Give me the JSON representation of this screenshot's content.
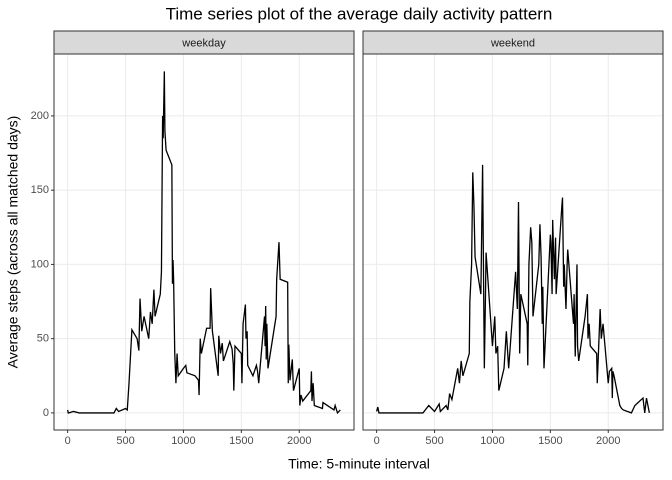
{
  "chart_data": {
    "type": "line",
    "title": "Time series plot of the average daily activity pattern",
    "xlabel": "Time: 5-minute interval",
    "ylabel": "Average steps (across all matched days)",
    "xlim": [
      -117.75,
      2472.75
    ],
    "xticks": [
      0,
      500,
      1000,
      1500,
      2000
    ],
    "ylim": [
      -11.5,
      241.7
    ],
    "yticks": [
      0,
      50,
      100,
      150,
      200
    ],
    "grid": true,
    "facet": true,
    "series": [
      {
        "name": "weekday",
        "color": "#000000",
        "x": [
          0,
          5,
          10,
          50,
          100,
          200,
          300,
          400,
          420,
          440,
          500,
          515,
          530,
          555,
          600,
          615,
          625,
          640,
          660,
          700,
          715,
          730,
          745,
          755,
          800,
          810,
          820,
          825,
          835,
          840,
          850,
          900,
          905,
          910,
          915,
          925,
          935,
          945,
          955,
          1000,
          1020,
          1030,
          1100,
          1130,
          1135,
          1145,
          1155,
          1200,
          1230,
          1235,
          1250,
          1300,
          1305,
          1320,
          1335,
          1345,
          1400,
          1420,
          1430,
          1435,
          1445,
          1500,
          1505,
          1515,
          1535,
          1540,
          1550,
          1555,
          1600,
          1630,
          1640,
          1650,
          1700,
          1705,
          1710,
          1715,
          1720,
          1730,
          1800,
          1805,
          1825,
          1835,
          1900,
          1905,
          1910,
          1920,
          1940,
          1950,
          2000,
          2005,
          2015,
          2030,
          2100,
          2105,
          2110,
          2120,
          2130,
          2200,
          2205,
          2300,
          2310,
          2330,
          2355
        ],
        "values": [
          2,
          0,
          0,
          1,
          0,
          0,
          0,
          0,
          3,
          1,
          3,
          2,
          20,
          56,
          50,
          42,
          77,
          55,
          65,
          50,
          68,
          60,
          83,
          65,
          80,
          95,
          200,
          185,
          230,
          190,
          177,
          167,
          87,
          103,
          90,
          40,
          20,
          40,
          25,
          30,
          32,
          27,
          25,
          22,
          12,
          50,
          40,
          57,
          57,
          84,
          55,
          25,
          52,
          40,
          47,
          35,
          48,
          43,
          33,
          15,
          45,
          40,
          20,
          60,
          73,
          50,
          55,
          32,
          25,
          32,
          28,
          20,
          65,
          45,
          72,
          36,
          60,
          30,
          65,
          90,
          115,
          90,
          88,
          20,
          46,
          22,
          36,
          15,
          30,
          5,
          12,
          8,
          15,
          28,
          8,
          20,
          5,
          3,
          7,
          2,
          5,
          0,
          2
        ]
      },
      {
        "name": "weekend",
        "color": "#000000",
        "x": [
          0,
          10,
          20,
          300,
          400,
          450,
          500,
          540,
          550,
          600,
          615,
          630,
          650,
          700,
          715,
          730,
          745,
          800,
          805,
          820,
          830,
          840,
          850,
          900,
          915,
          920,
          930,
          940,
          945,
          1000,
          1020,
          1030,
          1045,
          1055,
          1100,
          1120,
          1140,
          1200,
          1215,
          1225,
          1235,
          1245,
          1300,
          1305,
          1315,
          1330,
          1340,
          1350,
          1400,
          1410,
          1420,
          1430,
          1435,
          1445,
          1500,
          1505,
          1515,
          1520,
          1535,
          1545,
          1550,
          1600,
          1605,
          1615,
          1620,
          1635,
          1645,
          1650,
          1700,
          1705,
          1715,
          1720,
          1730,
          1735,
          1745,
          1800,
          1820,
          1825,
          1835,
          1845,
          1900,
          1905,
          1930,
          1940,
          1955,
          2000,
          2010,
          2030,
          2035,
          2040,
          2050,
          2100,
          2115,
          2130,
          2200,
          2230,
          2300,
          2315,
          2330,
          2355
        ],
        "values": [
          1,
          4,
          0,
          0,
          0,
          5,
          1,
          6,
          1,
          5,
          2,
          13,
          9,
          30,
          20,
          35,
          25,
          40,
          75,
          100,
          162,
          140,
          105,
          80,
          167,
          120,
          30,
          80,
          108,
          45,
          65,
          40,
          45,
          15,
          30,
          55,
          30,
          95,
          70,
          142,
          40,
          80,
          60,
          32,
          100,
          125,
          115,
          65,
          100,
          127,
          105,
          60,
          85,
          30,
          120,
          115,
          80,
          130,
          90,
          118,
          80,
          140,
          145,
          85,
          100,
          70,
          100,
          110,
          60,
          80,
          38,
          60,
          100,
          45,
          35,
          65,
          80,
          50,
          60,
          45,
          40,
          20,
          70,
          50,
          60,
          20,
          28,
          30,
          10,
          28,
          25,
          5,
          3,
          2,
          0,
          5,
          10,
          0,
          10,
          0
        ]
      }
    ]
  }
}
